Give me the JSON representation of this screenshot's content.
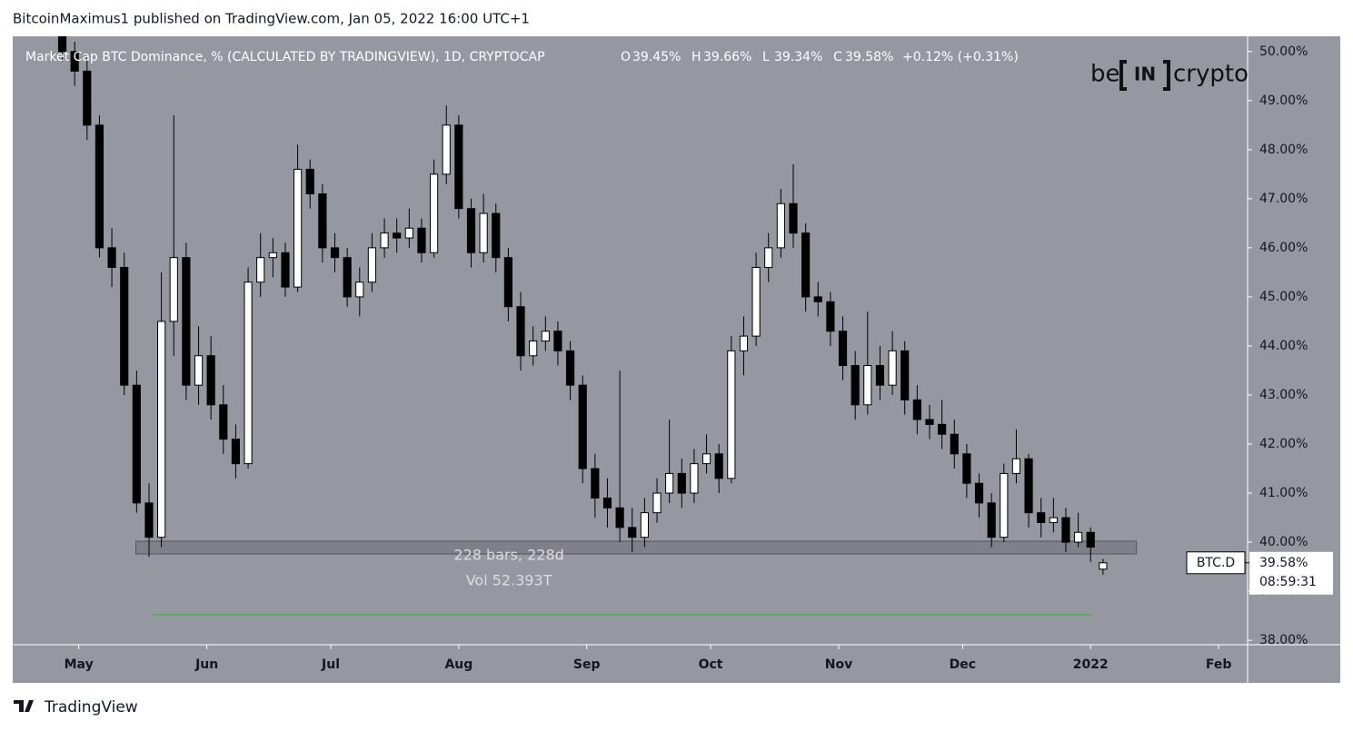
{
  "header": {
    "byline": "BitcoinMaximus1 published on TradingView.com, Jan 05, 2022 16:00 UTC+1"
  },
  "chart_data": {
    "type": "candlestick",
    "title": "Market Cap BTC Dominance, % (CALCULATED BY TRADINGVIEW), 1D, CRYPTOCAP",
    "ohlc_legend": [
      {
        "key": "O",
        "label": "39.45%"
      },
      {
        "key": "H",
        "label": "39.66%"
      },
      {
        "key": "L",
        "label": "39.34%"
      },
      {
        "key": "C",
        "label": "39.58%"
      }
    ],
    "change": "+0.12% (+0.31%)",
    "series": [
      {
        "name": "BTC.D",
        "open": [
          50.3,
          50.0,
          49.6,
          48.5,
          46.0,
          45.6,
          43.2,
          40.8,
          40.1,
          44.5,
          45.8,
          43.2,
          43.8,
          42.8,
          42.1,
          41.6,
          45.3,
          45.8,
          45.9,
          45.2,
          47.6,
          47.1,
          46.0,
          45.8,
          45.0,
          45.3,
          46.0,
          46.3,
          46.2,
          46.4,
          45.9,
          47.5,
          48.5,
          46.8,
          45.9,
          46.7,
          45.8,
          44.8,
          43.8,
          44.1,
          44.3,
          43.9,
          43.2,
          41.5,
          40.9,
          40.7,
          40.3,
          40.1,
          40.6,
          41.0,
          41.4,
          41.0,
          41.6,
          41.8,
          41.3,
          43.9,
          44.2,
          45.6,
          46.0,
          46.9,
          46.3,
          45.0,
          44.9,
          44.3,
          43.6,
          42.8,
          43.6,
          43.2,
          43.9,
          42.9,
          42.5,
          42.4,
          42.2,
          41.8,
          41.2,
          40.8,
          40.1,
          41.4,
          41.7,
          40.6,
          40.4,
          40.5,
          40.0,
          40.2,
          39.45
        ],
        "high": [
          50.4,
          50.2,
          49.9,
          48.7,
          46.4,
          45.9,
          43.5,
          41.2,
          45.5,
          48.7,
          46.1,
          44.4,
          44.2,
          43.2,
          42.4,
          45.6,
          46.3,
          46.2,
          46.1,
          48.1,
          47.8,
          47.3,
          46.3,
          46.0,
          45.6,
          46.3,
          46.6,
          46.6,
          46.8,
          46.6,
          47.8,
          48.9,
          48.7,
          47.0,
          47.1,
          46.9,
          46.0,
          45.1,
          44.4,
          44.6,
          44.5,
          44.1,
          43.4,
          41.8,
          41.3,
          43.5,
          40.7,
          40.9,
          41.3,
          42.5,
          41.7,
          41.9,
          42.2,
          42.0,
          44.2,
          44.6,
          45.9,
          46.3,
          47.2,
          47.7,
          46.5,
          45.3,
          45.1,
          44.6,
          43.9,
          44.7,
          44.0,
          44.3,
          44.1,
          43.2,
          42.8,
          42.9,
          42.5,
          42.0,
          41.4,
          41.0,
          41.6,
          42.3,
          41.8,
          40.9,
          40.9,
          40.7,
          40.6,
          40.3,
          39.66
        ],
        "low": [
          49.8,
          49.3,
          48.2,
          45.8,
          45.2,
          43.0,
          40.6,
          39.7,
          39.9,
          43.8,
          42.9,
          42.8,
          42.5,
          41.8,
          41.3,
          41.5,
          45.0,
          45.4,
          45.0,
          45.1,
          46.8,
          45.7,
          45.5,
          44.8,
          44.6,
          45.1,
          45.8,
          45.9,
          46.0,
          45.7,
          45.8,
          47.3,
          46.6,
          45.6,
          45.7,
          45.5,
          44.5,
          43.5,
          43.6,
          43.9,
          43.6,
          42.9,
          41.2,
          40.5,
          40.3,
          40.0,
          39.8,
          39.9,
          40.4,
          40.8,
          40.7,
          40.8,
          41.4,
          41.0,
          41.2,
          43.4,
          44.0,
          45.3,
          45.8,
          46.0,
          44.7,
          44.6,
          44.0,
          43.3,
          42.5,
          42.6,
          42.9,
          43.0,
          42.6,
          42.2,
          42.1,
          41.9,
          41.5,
          40.9,
          40.5,
          39.9,
          40.0,
          41.2,
          40.3,
          40.1,
          40.2,
          39.8,
          39.9,
          39.6,
          39.34
        ],
        "close": [
          50.0,
          49.6,
          48.5,
          46.0,
          45.6,
          43.2,
          40.8,
          40.1,
          44.5,
          45.8,
          43.2,
          43.8,
          42.8,
          42.1,
          41.6,
          45.3,
          45.8,
          45.9,
          45.2,
          47.6,
          47.1,
          46.0,
          45.8,
          45.0,
          45.3,
          46.0,
          46.3,
          46.2,
          46.4,
          45.9,
          47.5,
          48.5,
          46.8,
          45.9,
          46.7,
          45.8,
          44.8,
          43.8,
          44.1,
          44.3,
          43.9,
          43.2,
          41.5,
          40.9,
          40.7,
          40.3,
          40.1,
          40.6,
          41.0,
          41.4,
          41.0,
          41.6,
          41.8,
          41.3,
          43.9,
          44.2,
          45.6,
          46.0,
          46.9,
          46.3,
          45.0,
          44.9,
          44.3,
          43.6,
          42.8,
          43.6,
          43.2,
          43.9,
          42.9,
          42.5,
          42.4,
          42.2,
          41.8,
          41.2,
          40.8,
          40.1,
          41.4,
          41.7,
          40.6,
          40.4,
          40.5,
          40.0,
          40.2,
          39.9,
          39.58
        ]
      }
    ],
    "xlim": [
      -4,
      95.67
    ],
    "xticks": [
      {
        "value": 1.33,
        "label": "May"
      },
      {
        "value": 11.67,
        "label": "Jun"
      },
      {
        "value": 21.67,
        "label": "Jul"
      },
      {
        "value": 32,
        "label": "Aug"
      },
      {
        "value": 42.33,
        "label": "Sep"
      },
      {
        "value": 52.33,
        "label": "Oct"
      },
      {
        "value": 62.67,
        "label": "Nov"
      },
      {
        "value": 72.67,
        "label": "Dec"
      },
      {
        "value": 83,
        "label": "2022"
      },
      {
        "value": 93.33,
        "label": "Feb"
      }
    ],
    "ylim": [
      37.91,
      50.31
    ],
    "yticks": [
      {
        "value": 50,
        "label": "50.00%"
      },
      {
        "value": 49,
        "label": "49.00%"
      },
      {
        "value": 48,
        "label": "48.00%"
      },
      {
        "value": 47,
        "label": "47.00%"
      },
      {
        "value": 46,
        "label": "46.00%"
      },
      {
        "value": 45,
        "label": "45.00%"
      },
      {
        "value": 44,
        "label": "44.00%"
      },
      {
        "value": 43,
        "label": "43.00%"
      },
      {
        "value": 42,
        "label": "42.00%"
      },
      {
        "value": 41,
        "label": "41.00%"
      },
      {
        "value": 40,
        "label": "40.00%"
      },
      {
        "value": 39,
        "label": "39.00%"
      },
      {
        "value": 38,
        "label": "38.00%"
      }
    ],
    "support_zone": {
      "x": [
        5.94,
        86.7
      ],
      "y": [
        39.76,
        40.02
      ]
    },
    "measure": {
      "bars": "228 bars, 228d",
      "volume": "Vol 52.393T"
    },
    "target_line": {
      "x": [
        7.27,
        83.1
      ],
      "y": 38.52,
      "color": "#4caf50"
    },
    "price_label": {
      "symbol": "BTC.D",
      "value_label": "39.58%",
      "countdown": "08:59:31"
    },
    "up_color": "#ffffff",
    "down_color": "#000000"
  },
  "logo": {
    "left": "be",
    "middle": "IN",
    "right": "crypto"
  },
  "footer": {
    "brand": "TradingView"
  }
}
